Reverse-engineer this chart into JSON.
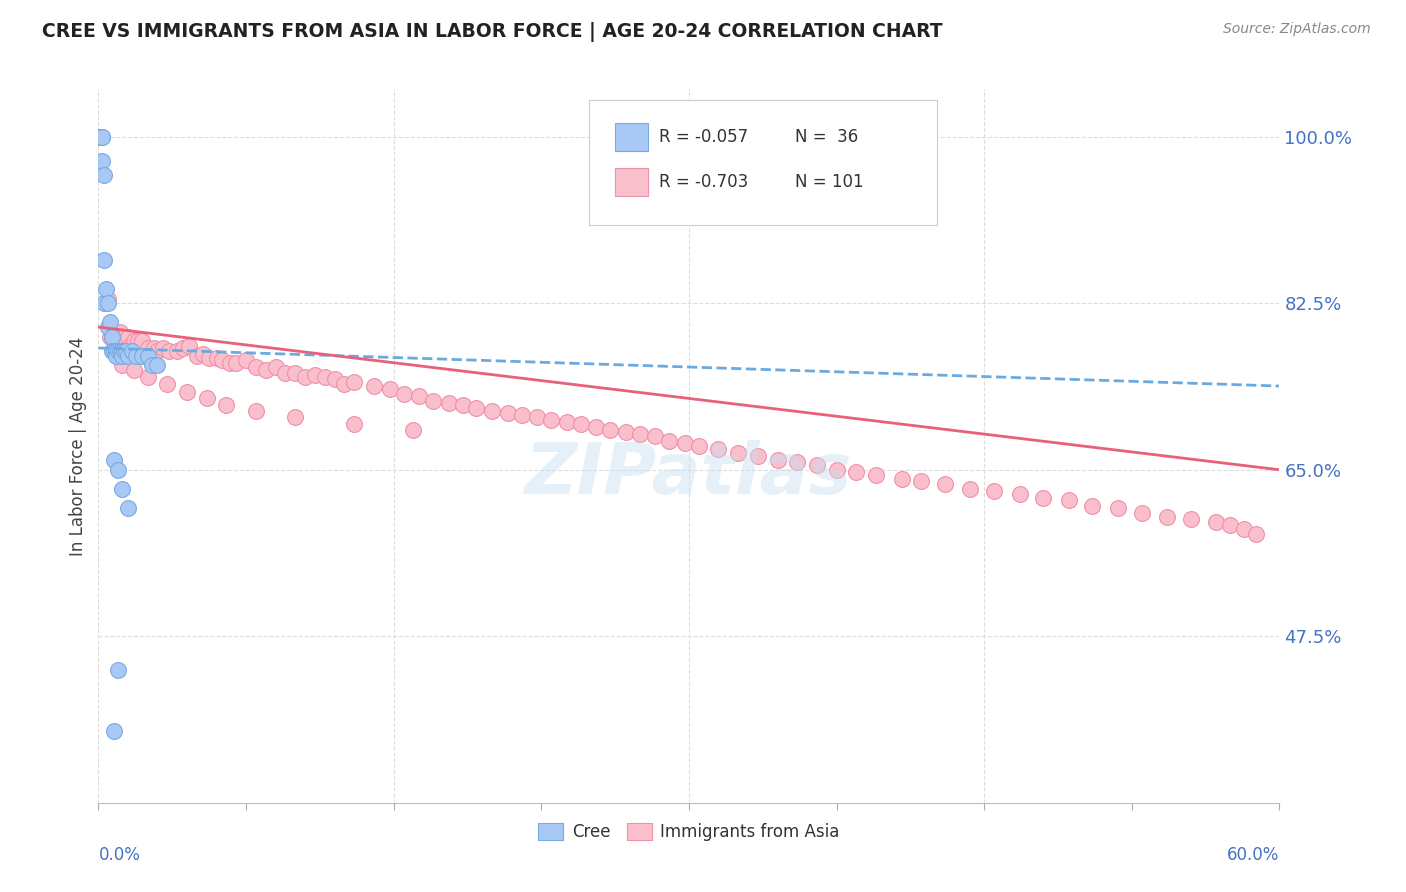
{
  "title": "CREE VS IMMIGRANTS FROM ASIA IN LABOR FORCE | AGE 20-24 CORRELATION CHART",
  "source": "Source: ZipAtlas.com",
  "ylabel": "In Labor Force | Age 20-24",
  "ytick_labels": [
    "100.0%",
    "82.5%",
    "65.0%",
    "47.5%"
  ],
  "ytick_values": [
    1.0,
    0.825,
    0.65,
    0.475
  ],
  "xmin": 0.0,
  "xmax": 0.6,
  "ymin": 0.3,
  "ymax": 1.05,
  "cree_color": "#a8c8f5",
  "cree_edge": "#7aaade",
  "asia_color": "#f9bfcc",
  "asia_edge": "#f090a8",
  "trendline_cree_color": "#6aaae0",
  "trendline_asia_color": "#e8607a",
  "grid_color": "#dddddd",
  "watermark": "ZIPatlas",
  "legend_R1": "R = -0.057",
  "legend_N1": "N =  36",
  "legend_R2": "R = -0.703",
  "legend_N2": "N = 101",
  "cree_x": [
    0.001,
    0.001,
    0.002,
    0.002,
    0.002,
    0.003,
    0.003,
    0.003,
    0.004,
    0.005,
    0.005,
    0.006,
    0.007,
    0.007,
    0.008,
    0.009,
    0.009,
    0.01,
    0.011,
    0.012,
    0.012,
    0.013,
    0.014,
    0.015,
    0.017,
    0.019,
    0.022,
    0.025,
    0.027,
    0.03,
    0.008,
    0.01,
    0.012,
    0.015,
    0.01,
    0.008
  ],
  "cree_y": [
    1.0,
    1.0,
    1.0,
    1.0,
    0.975,
    0.96,
    0.87,
    0.825,
    0.84,
    0.825,
    0.8,
    0.805,
    0.79,
    0.775,
    0.775,
    0.775,
    0.77,
    0.775,
    0.775,
    0.775,
    0.77,
    0.775,
    0.775,
    0.77,
    0.775,
    0.77,
    0.77,
    0.77,
    0.76,
    0.76,
    0.66,
    0.65,
    0.63,
    0.61,
    0.44,
    0.375
  ],
  "asia_x": [
    0.005,
    0.006,
    0.007,
    0.008,
    0.009,
    0.01,
    0.011,
    0.012,
    0.013,
    0.015,
    0.016,
    0.018,
    0.02,
    0.022,
    0.025,
    0.028,
    0.03,
    0.033,
    0.036,
    0.04,
    0.043,
    0.046,
    0.05,
    0.053,
    0.056,
    0.06,
    0.063,
    0.067,
    0.07,
    0.075,
    0.08,
    0.085,
    0.09,
    0.095,
    0.1,
    0.105,
    0.11,
    0.115,
    0.12,
    0.125,
    0.13,
    0.14,
    0.148,
    0.155,
    0.163,
    0.17,
    0.178,
    0.185,
    0.192,
    0.2,
    0.208,
    0.215,
    0.223,
    0.23,
    0.238,
    0.245,
    0.253,
    0.26,
    0.268,
    0.275,
    0.283,
    0.29,
    0.298,
    0.305,
    0.315,
    0.325,
    0.335,
    0.345,
    0.355,
    0.365,
    0.375,
    0.385,
    0.395,
    0.408,
    0.418,
    0.43,
    0.443,
    0.455,
    0.468,
    0.48,
    0.493,
    0.505,
    0.518,
    0.53,
    0.543,
    0.555,
    0.568,
    0.575,
    0.582,
    0.588,
    0.012,
    0.018,
    0.025,
    0.035,
    0.045,
    0.055,
    0.065,
    0.08,
    0.1,
    0.13,
    0.16
  ],
  "asia_y": [
    0.83,
    0.79,
    0.79,
    0.775,
    0.795,
    0.785,
    0.795,
    0.79,
    0.79,
    0.79,
    0.78,
    0.785,
    0.785,
    0.785,
    0.778,
    0.778,
    0.775,
    0.778,
    0.775,
    0.775,
    0.778,
    0.78,
    0.77,
    0.772,
    0.768,
    0.768,
    0.765,
    0.762,
    0.762,
    0.765,
    0.758,
    0.755,
    0.758,
    0.752,
    0.752,
    0.748,
    0.75,
    0.748,
    0.745,
    0.74,
    0.742,
    0.738,
    0.735,
    0.73,
    0.728,
    0.722,
    0.72,
    0.718,
    0.715,
    0.712,
    0.71,
    0.708,
    0.705,
    0.702,
    0.7,
    0.698,
    0.695,
    0.692,
    0.69,
    0.688,
    0.685,
    0.68,
    0.678,
    0.675,
    0.672,
    0.668,
    0.665,
    0.66,
    0.658,
    0.655,
    0.65,
    0.648,
    0.645,
    0.64,
    0.638,
    0.635,
    0.63,
    0.628,
    0.625,
    0.62,
    0.618,
    0.612,
    0.61,
    0.605,
    0.6,
    0.598,
    0.595,
    0.592,
    0.588,
    0.582,
    0.76,
    0.755,
    0.748,
    0.74,
    0.732,
    0.725,
    0.718,
    0.712,
    0.705,
    0.698,
    0.692
  ],
  "cree_trend_x": [
    0.0,
    0.6
  ],
  "cree_trend_y": [
    0.778,
    0.738
  ],
  "asia_trend_x": [
    0.0,
    0.6
  ],
  "asia_trend_y": [
    0.8,
    0.65
  ]
}
